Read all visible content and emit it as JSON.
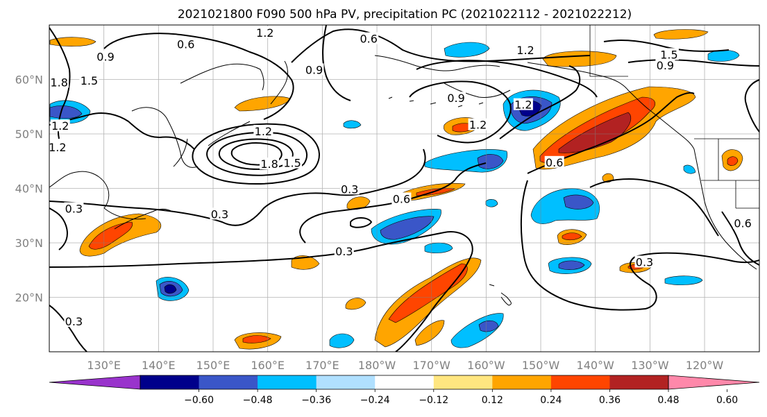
{
  "title": "2021021800 F090 500 hPa PV, precipitation PC (2021022112 - 2021022212)",
  "lat_ticks": [
    "60°N",
    "50°N",
    "40°N",
    "30°N",
    "20°N"
  ],
  "lon_ticks": [
    "130°E",
    "140°E",
    "150°E",
    "160°E",
    "170°E",
    "180°W",
    "170°W",
    "160°W",
    "150°W",
    "140°W",
    "130°W",
    "120°W"
  ],
  "colorbar": {
    "ticks": [
      "−0.60",
      "−0.48",
      "−0.36",
      "−0.24",
      "−0.12",
      "0.12",
      "0.24",
      "0.36",
      "0.48",
      "0.60"
    ],
    "colors": [
      "#9933cc",
      "#00008b",
      "#3a56c8",
      "#00bfff",
      "#b0e0ff",
      "#ffffff",
      "#ffe680",
      "#ffa500",
      "#ff4500",
      "#b22222",
      "#ff88aa"
    ]
  },
  "contour_labels": [
    {
      "text": "1.2",
      "lon": 159.5,
      "lat": 68.6
    },
    {
      "text": "0.6",
      "lon": 145,
      "lat": 66.5
    },
    {
      "text": "0.9",
      "lon": 130.3,
      "lat": 64.2
    },
    {
      "text": "1.5",
      "lon": 127.3,
      "lat": 59.8
    },
    {
      "text": "1.8",
      "lon": 121.8,
      "lat": 59.5
    },
    {
      "text": "0.6",
      "lon": 178.5,
      "lat": 67.5
    },
    {
      "text": "1.2",
      "lon": -152.8,
      "lat": 65.4
    },
    {
      "text": "1.5",
      "lon": -126.5,
      "lat": 64.6
    },
    {
      "text": "0.9",
      "lon": -127.2,
      "lat": 62.6
    },
    {
      "text": "0.9",
      "lon": 168.5,
      "lat": 61.8
    },
    {
      "text": "0.9",
      "lon": -165.5,
      "lat": 56.6
    },
    {
      "text": "1.2",
      "lon": -153.2,
      "lat": 55.4
    },
    {
      "text": "1.2",
      "lon": -161.5,
      "lat": 51.7
    },
    {
      "text": "1.2",
      "lon": 159.2,
      "lat": 50.5
    },
    {
      "text": "1.8",
      "lon": 160.3,
      "lat": 44.5
    },
    {
      "text": "1.5",
      "lon": 164.5,
      "lat": 44.7
    },
    {
      "text": "1.2",
      "lon": 121.5,
      "lat": 47.6
    },
    {
      "text": "1.2",
      "lon": 122,
      "lat": 51.5
    },
    {
      "text": "0.6",
      "lon": -147.5,
      "lat": 44.8
    },
    {
      "text": "0.3",
      "lon": 175,
      "lat": 39.9
    },
    {
      "text": "0.6",
      "lon": -175.5,
      "lat": 38.1
    },
    {
      "text": "0.3",
      "lon": 124.5,
      "lat": 36.3
    },
    {
      "text": "0.3",
      "lon": 151.2,
      "lat": 35.3
    },
    {
      "text": "0.3",
      "lon": 174,
      "lat": 28.5
    },
    {
      "text": "0.3",
      "lon": -131,
      "lat": 26.5
    },
    {
      "text": "0.6",
      "lon": -113,
      "lat": 33.6
    },
    {
      "text": "0.3",
      "lon": 124.5,
      "lat": 15.6
    }
  ]
}
